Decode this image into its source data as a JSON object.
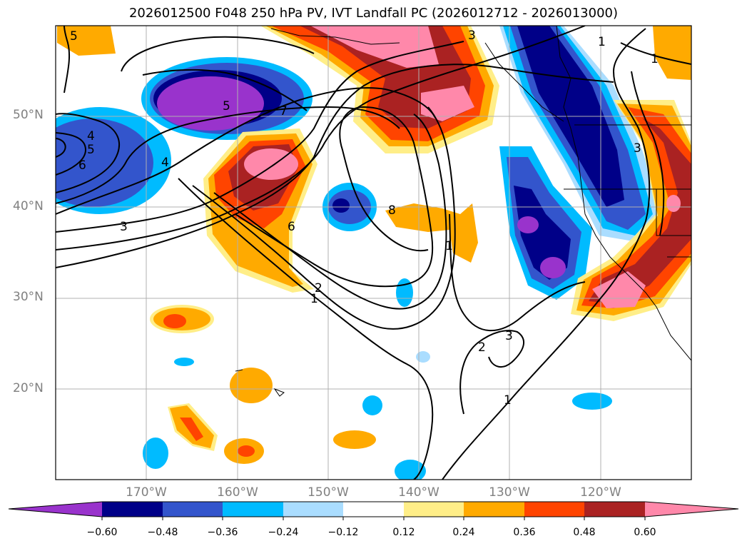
{
  "title": "2026012500 F048 250 hPa PV, IVT Landfall PC (2026012712 - 2026013000)",
  "lat_labels": [
    "50°N",
    "40°N",
    "30°N",
    "20°N"
  ],
  "lon_labels": [
    "170°W",
    "160°W",
    "150°W",
    "140°W",
    "130°W",
    "120°W"
  ],
  "colorbar": {
    "ticks": [
      "−0.60",
      "−0.48",
      "−0.36",
      "−0.24",
      "−0.12",
      "0.12",
      "0.24",
      "0.36",
      "0.48",
      "0.60"
    ],
    "colors": [
      "#9933cc",
      "#000088",
      "#3355cc",
      "#00bbff",
      "#aaddff",
      "#ffffff",
      "#ffee88",
      "#ffaa00",
      "#ff4400",
      "#aa2222",
      "#ff88aa"
    ],
    "extend": "both"
  },
  "contour_labels": [
    "5",
    "7",
    "4",
    "5",
    "6",
    "4",
    "3",
    "6",
    "2",
    "1",
    "8",
    "1",
    "2",
    "3",
    "1",
    "1",
    "1",
    "3",
    "5",
    "3"
  ],
  "gridlines": true
}
